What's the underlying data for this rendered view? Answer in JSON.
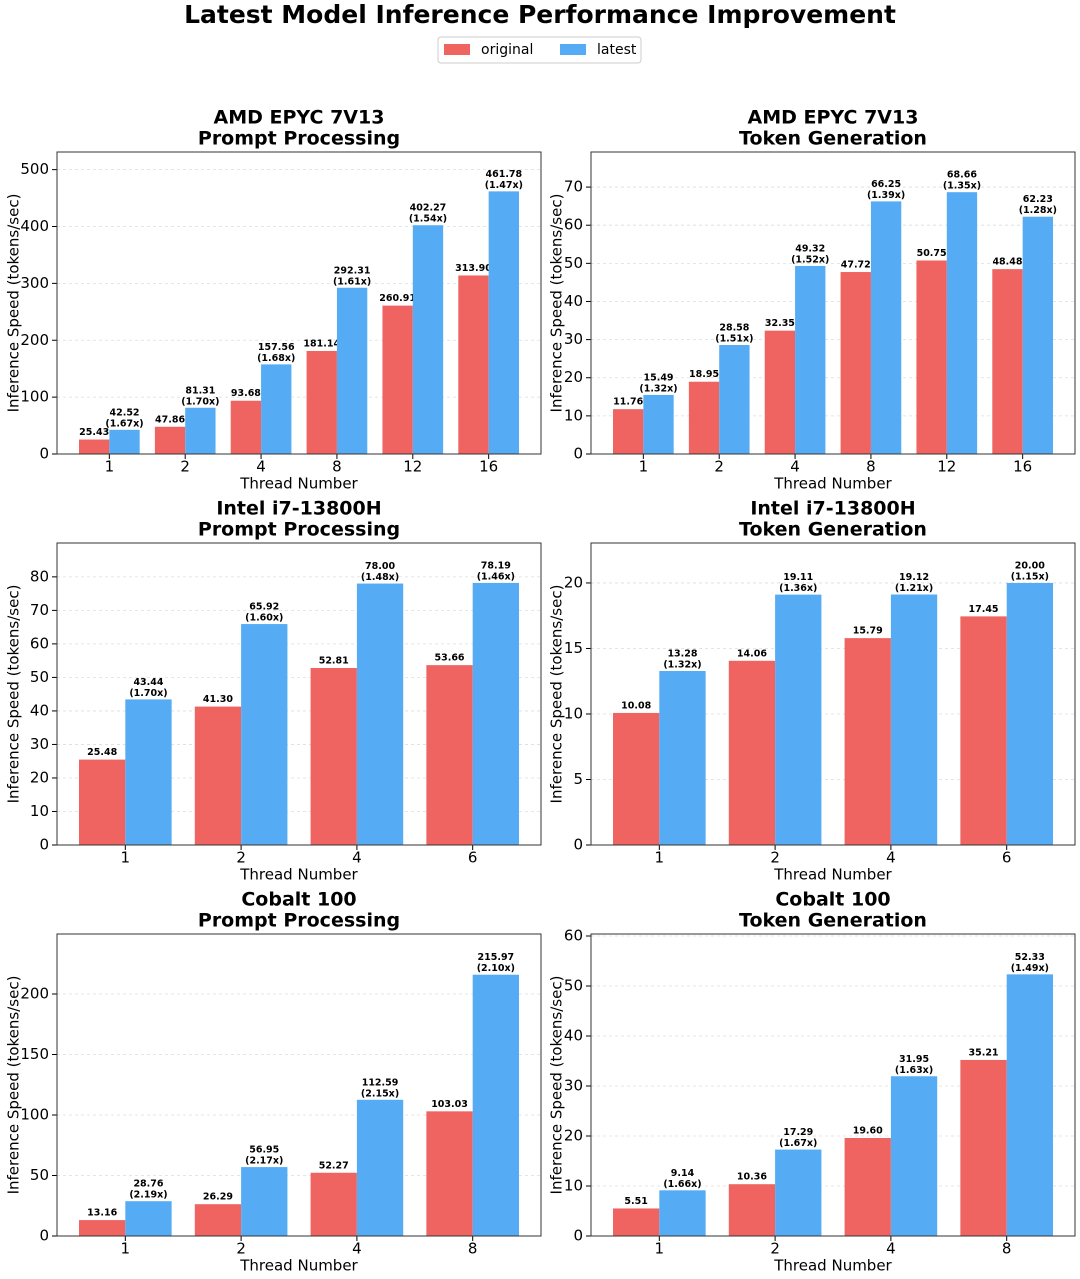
{
  "title": "Latest Model Inference Performance Improvement",
  "legend": [
    {
      "name": "original",
      "color": "#ef6461"
    },
    {
      "name": "latest",
      "color": "#55acf4"
    }
  ],
  "chart_data": [
    {
      "type": "bar",
      "title": "AMD EPYC 7V13",
      "subtitle": "Prompt Processing",
      "xlabel": "Thread Number",
      "ylabel": "Inference Speed (tokens/sec)",
      "categories": [
        "1",
        "2",
        "4",
        "8",
        "12",
        "16"
      ],
      "series": [
        {
          "values": [
            25.43,
            47.86,
            93.68,
            181.14,
            260.91,
            313.9
          ],
          "value_labels": [
            "25.43",
            "47.86",
            "93.68",
            "181.14",
            "260.91",
            "313.90"
          ]
        },
        {
          "values": [
            42.52,
            81.31,
            157.56,
            292.31,
            402.27,
            461.78
          ],
          "value_labels": [
            "42.52",
            "81.31",
            "157.56",
            "292.31",
            "402.27",
            "461.78"
          ],
          "ratio_labels": [
            "(1.67x)",
            "(1.70x)",
            "(1.68x)",
            "(1.61x)",
            "(1.54x)",
            "(1.47x)"
          ]
        }
      ],
      "ylim": [
        0,
        531
      ],
      "yticks": [
        0,
        100,
        200,
        300,
        400,
        500
      ],
      "grid": true
    },
    {
      "type": "bar",
      "title": "AMD EPYC 7V13",
      "subtitle": "Token Generation",
      "xlabel": "Thread Number",
      "ylabel": "Inference Speed (tokens/sec)",
      "categories": [
        "1",
        "2",
        "4",
        "8",
        "12",
        "16"
      ],
      "series": [
        {
          "values": [
            11.76,
            18.95,
            32.35,
            47.72,
            50.75,
            48.48
          ],
          "value_labels": [
            "11.76",
            "18.95",
            "32.35",
            "47.72",
            "50.75",
            "48.48"
          ]
        },
        {
          "values": [
            15.49,
            28.58,
            49.32,
            66.25,
            68.66,
            62.23
          ],
          "value_labels": [
            "15.49",
            "28.58",
            "49.32",
            "66.25",
            "68.66",
            "62.23"
          ],
          "ratio_labels": [
            "(1.32x)",
            "(1.51x)",
            "(1.52x)",
            "(1.39x)",
            "(1.35x)",
            "(1.28x)"
          ]
        }
      ],
      "ylim": [
        0,
        79.2
      ],
      "yticks": [
        0,
        10,
        20,
        30,
        40,
        50,
        60,
        70
      ],
      "grid": true
    },
    {
      "type": "bar",
      "title": "Intel i7-13800H",
      "subtitle": "Prompt Processing",
      "xlabel": "Thread Number",
      "ylabel": "Inference Speed (tokens/sec)",
      "categories": [
        "1",
        "2",
        "4",
        "6"
      ],
      "series": [
        {
          "values": [
            25.48,
            41.3,
            52.81,
            53.66
          ],
          "value_labels": [
            "25.48",
            "41.30",
            "52.81",
            "53.66"
          ]
        },
        {
          "values": [
            43.44,
            65.92,
            78.0,
            78.19
          ],
          "value_labels": [
            "43.44",
            "65.92",
            "78.00",
            "78.19"
          ],
          "ratio_labels": [
            "(1.70x)",
            "(1.60x)",
            "(1.48x)",
            "(1.46x)"
          ]
        }
      ],
      "ylim": [
        0,
        90.1
      ],
      "yticks": [
        0,
        10,
        20,
        30,
        40,
        50,
        60,
        70,
        80
      ],
      "grid": true
    },
    {
      "type": "bar",
      "title": "Intel i7-13800H",
      "subtitle": "Token Generation",
      "xlabel": "Thread Number",
      "ylabel": "Inference Speed (tokens/sec)",
      "categories": [
        "1",
        "2",
        "4",
        "6"
      ],
      "series": [
        {
          "values": [
            10.08,
            14.06,
            15.79,
            17.45
          ],
          "value_labels": [
            "10.08",
            "14.06",
            "15.79",
            "17.45"
          ]
        },
        {
          "values": [
            13.28,
            19.11,
            19.12,
            20.0
          ],
          "value_labels": [
            "13.28",
            "19.11",
            "19.12",
            "20.00"
          ],
          "ratio_labels": [
            "(1.32x)",
            "(1.36x)",
            "(1.21x)",
            "(1.15x)"
          ]
        }
      ],
      "ylim": [
        0,
        23.05
      ],
      "yticks": [
        0,
        5,
        10,
        15,
        20
      ],
      "grid": true
    },
    {
      "type": "bar",
      "title": "Cobalt 100",
      "subtitle": "Prompt Processing",
      "xlabel": "Thread Number",
      "ylabel": "Inference Speed (tokens/sec)",
      "categories": [
        "1",
        "2",
        "4",
        "8"
      ],
      "series": [
        {
          "values": [
            13.16,
            26.29,
            52.27,
            103.03
          ],
          "value_labels": [
            "13.16",
            "26.29",
            "52.27",
            "103.03"
          ]
        },
        {
          "values": [
            28.76,
            56.95,
            112.59,
            215.97
          ],
          "value_labels": [
            "28.76",
            "56.95",
            "112.59",
            "215.97"
          ],
          "ratio_labels": [
            "(2.19x)",
            "(2.17x)",
            "(2.15x)",
            "(2.10x)"
          ]
        }
      ],
      "ylim": [
        0,
        249.6
      ],
      "yticks": [
        0,
        50,
        100,
        150,
        200
      ],
      "grid": true
    },
    {
      "type": "bar",
      "title": "Cobalt 100",
      "subtitle": "Token Generation",
      "xlabel": "Thread Number",
      "ylabel": "Inference Speed (tokens/sec)",
      "categories": [
        "1",
        "2",
        "4",
        "8"
      ],
      "series": [
        {
          "values": [
            5.51,
            10.36,
            19.6,
            35.21
          ],
          "value_labels": [
            "5.51",
            "10.36",
            "19.60",
            "35.21"
          ]
        },
        {
          "values": [
            9.14,
            17.29,
            31.95,
            52.33
          ],
          "value_labels": [
            "9.14",
            "17.29",
            "31.95",
            "52.33"
          ],
          "ratio_labels": [
            "(1.66x)",
            "(1.67x)",
            "(1.63x)",
            "(1.49x)"
          ]
        }
      ],
      "ylim": [
        0,
        60.4
      ],
      "yticks": [
        0,
        10,
        20,
        30,
        40,
        50,
        60
      ],
      "grid": true
    }
  ]
}
